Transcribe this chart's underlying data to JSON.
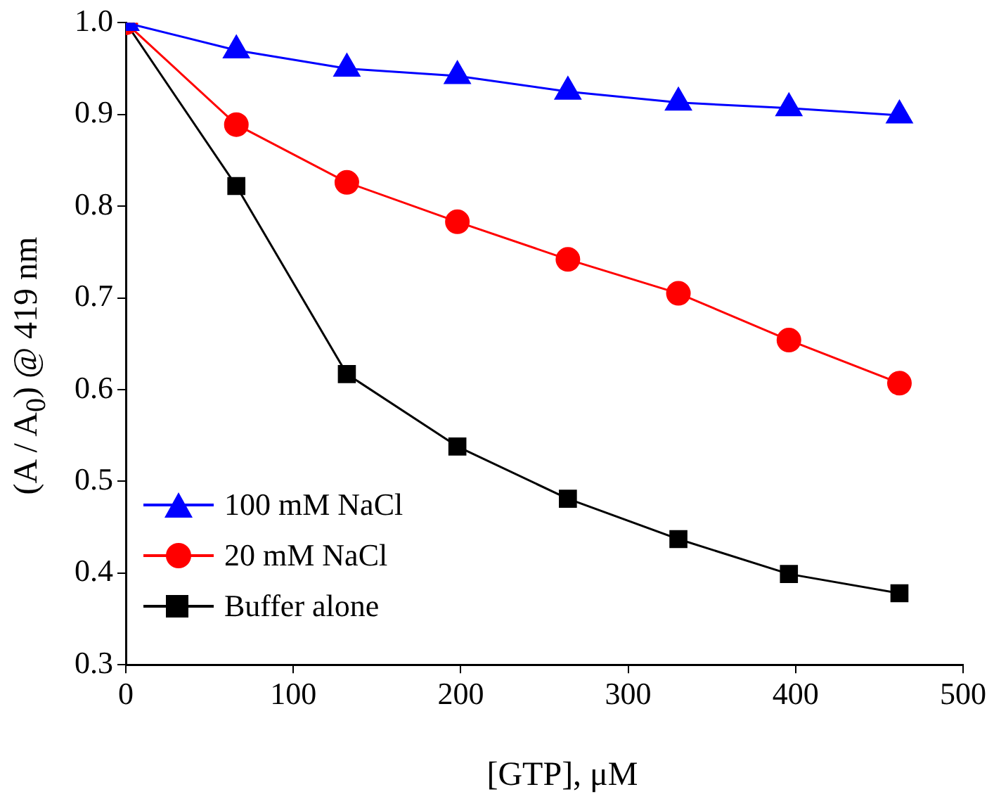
{
  "chart_data": {
    "type": "line",
    "xlabel": "[GTP], μM",
    "ylabel": "(A / A$_{0}$) @ 419 nm",
    "x": [
      0,
      66,
      132,
      198,
      264,
      330,
      396,
      462
    ],
    "xlim": [
      0,
      500
    ],
    "xticks": [
      0,
      100,
      200,
      300,
      400,
      500
    ],
    "ylim": [
      0.3,
      1.0
    ],
    "yticks": [
      {
        "value": 0.3,
        "label": "0.3"
      },
      {
        "value": 0.4,
        "label": "0.4"
      },
      {
        "value": 0.5,
        "label": "0.5"
      },
      {
        "value": 0.6,
        "label": "0.6"
      },
      {
        "value": 0.7,
        "label": "0.7"
      },
      {
        "value": 0.8,
        "label": "0.8"
      },
      {
        "value": 0.9,
        "label": "0.9"
      },
      {
        "value": 1.0,
        "label": "1.0"
      }
    ],
    "grid": false,
    "legend": "bottom left",
    "line_style": "solid",
    "series": [
      {
        "name": "100 mM NaCl",
        "color": "#0000ff",
        "marker": "triangle",
        "values": [
          1.0,
          0.97,
          0.95,
          0.942,
          0.925,
          0.913,
          0.907,
          0.899
        ]
      },
      {
        "name": "20 mM NaCl",
        "color": "#ff0000",
        "marker": "circle",
        "values": [
          1.0,
          0.889,
          0.826,
          0.783,
          0.742,
          0.705,
          0.654,
          0.607
        ]
      },
      {
        "name": "Buffer alone",
        "color": "#000000",
        "marker": "square",
        "values": [
          1.0,
          0.822,
          0.617,
          0.538,
          0.481,
          0.437,
          0.399,
          0.378
        ]
      }
    ]
  }
}
